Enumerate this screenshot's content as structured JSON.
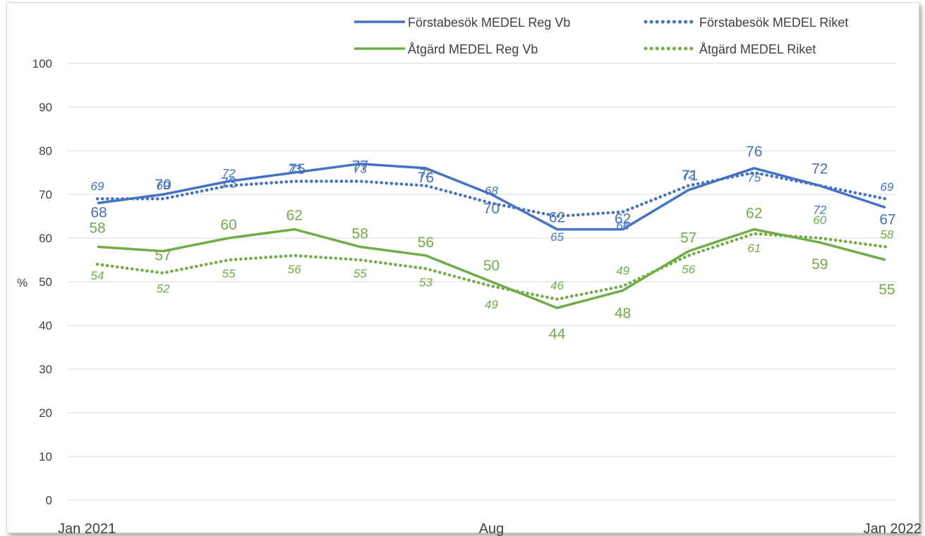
{
  "chart_data": {
    "type": "line",
    "title": "",
    "xlabel": "",
    "ylabel": "%",
    "ylim": [
      0,
      100
    ],
    "yticks": [
      0,
      10,
      20,
      30,
      40,
      50,
      60,
      70,
      80,
      90,
      100
    ],
    "grid": true,
    "legend_position": "top-right",
    "categories": [
      "Jan 2021",
      "",
      "",
      "",
      "",
      "",
      "Aug",
      "",
      "",
      "",
      "",
      "",
      "Jan 2022"
    ],
    "x_tick_labels": [
      "Jan 2021",
      "Aug",
      "Jan 2022"
    ],
    "series": [
      {
        "name": "Förstabesök MEDEL Reg Vb",
        "style": "solid",
        "color": "#4472c4",
        "values": [
          68,
          70,
          73,
          75,
          77,
          76,
          70,
          62,
          62,
          71,
          76,
          72,
          67
        ],
        "labels": [
          "68",
          "70",
          "73",
          "75",
          "77",
          "76",
          "70",
          "62",
          "62",
          "71",
          "76",
          "72",
          "67"
        ]
      },
      {
        "name": "Förstabesök MEDEL Riket",
        "style": "dotted",
        "color": "#4472c4",
        "values": [
          69,
          69,
          72,
          73,
          73,
          72,
          68,
          65,
          66,
          72,
          75,
          72,
          69
        ],
        "labels": [
          "69",
          "69",
          "72",
          "73",
          "73",
          "72",
          "68",
          "65",
          "66",
          "72",
          "75",
          "72",
          "69"
        ]
      },
      {
        "name": "Åtgärd MEDEL Reg Vb",
        "style": "solid",
        "color": "#70ad47",
        "values": [
          58,
          57,
          60,
          62,
          58,
          56,
          50,
          44,
          48,
          57,
          62,
          59,
          55
        ],
        "labels": [
          "58",
          "57",
          "60",
          "62",
          "58",
          "56",
          "50",
          "44",
          "48",
          "57",
          "62",
          "59",
          "55"
        ]
      },
      {
        "name": "Åtgärd MEDEL Riket",
        "style": "dotted",
        "color": "#70ad47",
        "values": [
          54,
          52,
          55,
          56,
          55,
          53,
          49,
          46,
          49,
          56,
          61,
          60,
          58
        ],
        "labels": [
          "54",
          "52",
          "55",
          "56",
          "55",
          "53",
          "49",
          "46",
          "49",
          "56",
          "61",
          "60",
          "58"
        ]
      }
    ]
  }
}
